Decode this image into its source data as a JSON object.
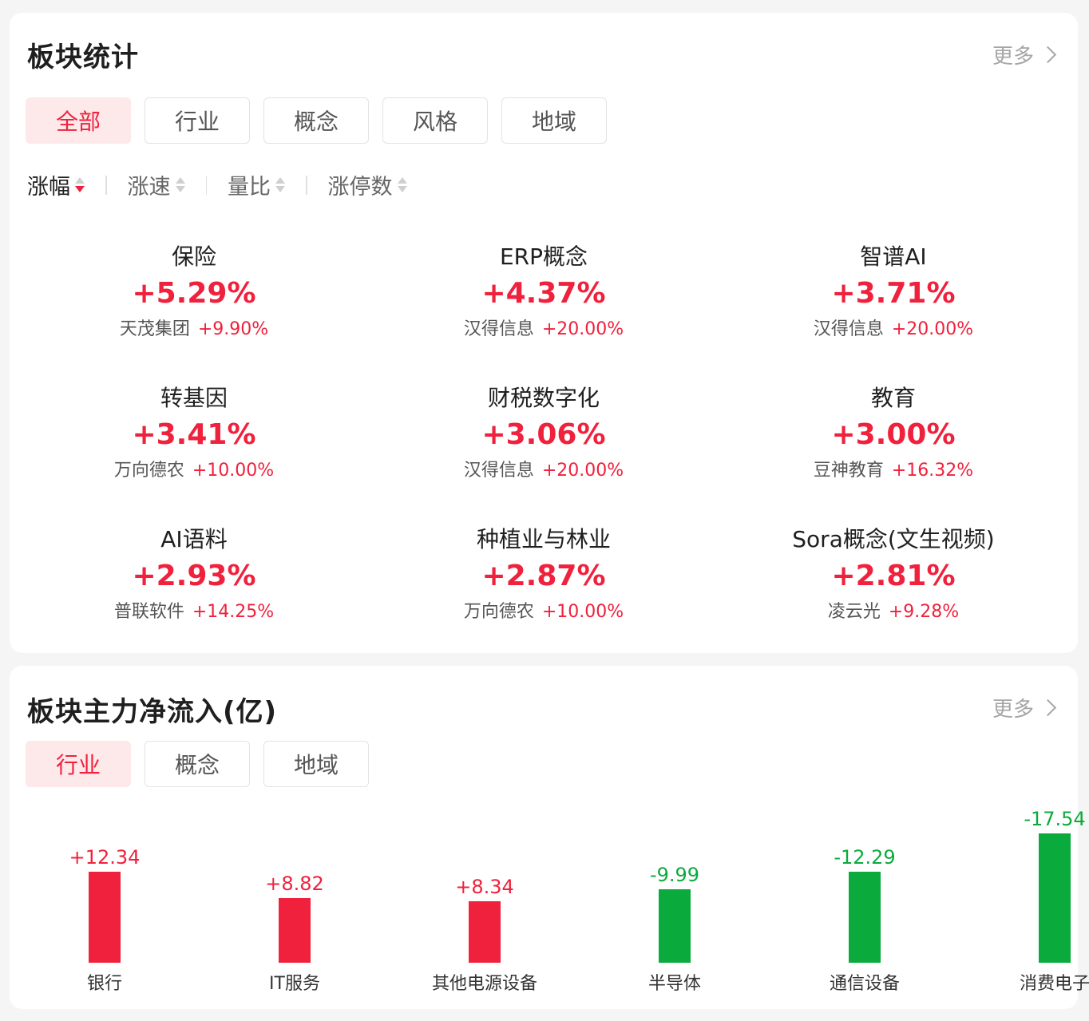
{
  "sector_stats": {
    "title": "板块统计",
    "more_label": "更多",
    "tabs": [
      {
        "label": "全部",
        "active": true
      },
      {
        "label": "行业",
        "active": false
      },
      {
        "label": "概念",
        "active": false
      },
      {
        "label": "风格",
        "active": false
      },
      {
        "label": "地域",
        "active": false
      }
    ],
    "sort_options": [
      {
        "label": "涨幅",
        "active": true
      },
      {
        "label": "涨速",
        "active": false
      },
      {
        "label": "量比",
        "active": false
      },
      {
        "label": "涨停数",
        "active": false
      }
    ],
    "items": [
      {
        "name": "保险",
        "change": "+5.29%",
        "leader": "天茂集团",
        "leader_change": "+9.90%"
      },
      {
        "name": "ERP概念",
        "change": "+4.37%",
        "leader": "汉得信息",
        "leader_change": "+20.00%"
      },
      {
        "name": "智谱AI",
        "change": "+3.71%",
        "leader": "汉得信息",
        "leader_change": "+20.00%"
      },
      {
        "name": "转基因",
        "change": "+3.41%",
        "leader": "万向德农",
        "leader_change": "+10.00%"
      },
      {
        "name": "财税数字化",
        "change": "+3.06%",
        "leader": "汉得信息",
        "leader_change": "+20.00%"
      },
      {
        "name": "教育",
        "change": "+3.00%",
        "leader": "豆神教育",
        "leader_change": "+16.32%"
      },
      {
        "name": "AI语料",
        "change": "+2.93%",
        "leader": "普联软件",
        "leader_change": "+14.25%"
      },
      {
        "name": "种植业与林业",
        "change": "+2.87%",
        "leader": "万向德农",
        "leader_change": "+10.00%"
      },
      {
        "name": "Sora概念(文生视频)",
        "change": "+2.81%",
        "leader": "凌云光",
        "leader_change": "+9.28%"
      }
    ]
  },
  "net_inflow": {
    "title": "板块主力净流入(亿)",
    "more_label": "更多",
    "tabs": [
      {
        "label": "行业",
        "active": true
      },
      {
        "label": "概念",
        "active": false
      },
      {
        "label": "地域",
        "active": false
      }
    ]
  },
  "colors": {
    "up": "#f0213c",
    "down": "#0aab3c",
    "active_tab_bg": "#fde8ea"
  },
  "chart_data": {
    "type": "bar",
    "title": "板块主力净流入(亿)",
    "categories": [
      "银行",
      "IT服务",
      "其他电源设备",
      "半导体",
      "通信设备",
      "消费电子"
    ],
    "values": [
      12.34,
      8.82,
      8.34,
      -9.99,
      -12.29,
      -17.54
    ],
    "labels": [
      "+12.34",
      "+8.82",
      "+8.34",
      "-9.99",
      "-12.29",
      "-17.54"
    ],
    "note_sign_encoding": "bars drawn upward by absolute value; positive red, negative green",
    "grid": false
  }
}
